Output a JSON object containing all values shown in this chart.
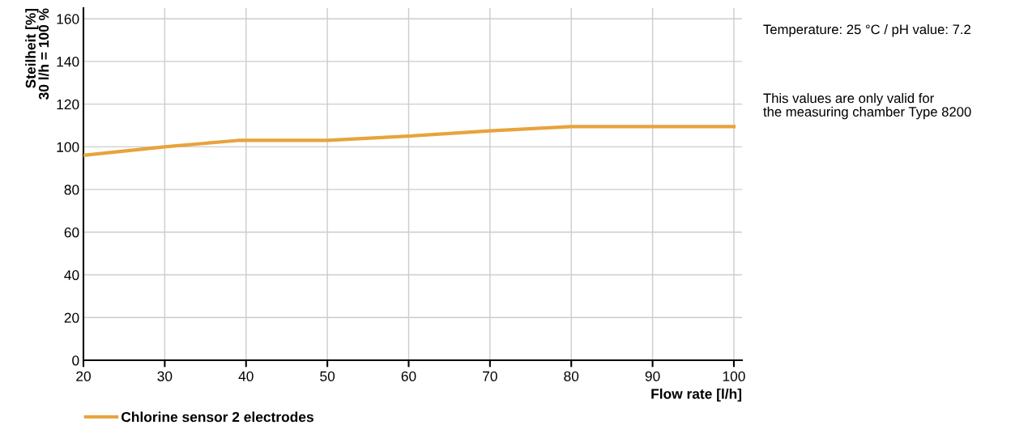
{
  "chart_data": {
    "type": "line",
    "x": [
      20,
      30,
      39,
      50,
      60,
      70,
      80,
      90,
      100
    ],
    "series": [
      {
        "name": "Chlorine sensor 2 electrodes",
        "color": "#e8a33d",
        "values": [
          96,
          100,
          103,
          103,
          105,
          107.5,
          109.5,
          109.5,
          109.5
        ]
      }
    ],
    "xlabel": "Flow rate [l/h]",
    "ylabel": "Steilheit [%]\n30 l/h = 100 %",
    "xlim": [
      20,
      101
    ],
    "ylim": [
      0,
      165
    ],
    "xticks": [
      20,
      30,
      40,
      50,
      60,
      70,
      80,
      90,
      100
    ],
    "yticks": [
      0,
      20,
      40,
      60,
      80,
      100,
      120,
      140,
      160
    ],
    "grid": true,
    "legend": "bottom left",
    "marker": "none",
    "line_style": "solid",
    "annotations": [
      "Temperature: 25 °C / pH value: 7.2",
      "This values are only valid for\nthe measuring chamber Type 8200"
    ]
  }
}
